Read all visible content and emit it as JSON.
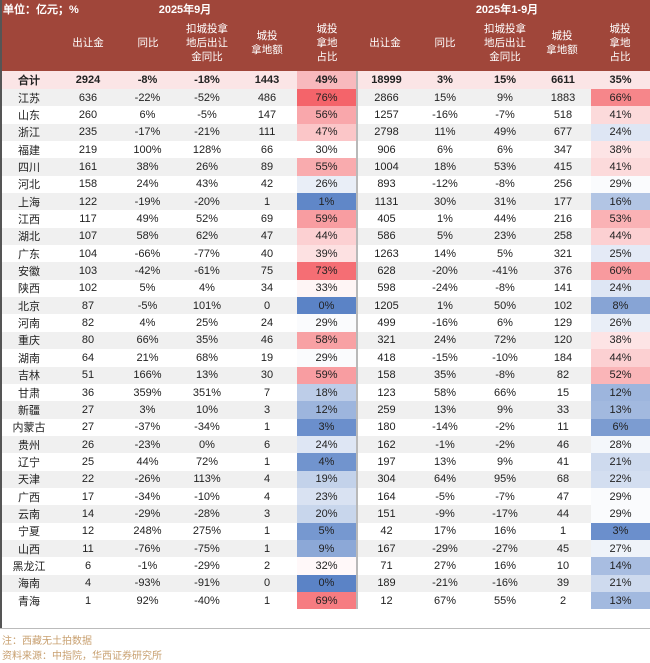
{
  "header": {
    "unit": "单位：亿元；%",
    "period_month": "2025年9月",
    "period_ytd": "2025年1-9月",
    "columns": [
      "出让金",
      "同比",
      "扣城投拿\n地后出让\n金同比",
      "城投\n拿地额",
      "城投\n拿地\n占比"
    ]
  },
  "colors": {
    "header_bg": "#a0463a",
    "high": "#f4646a",
    "low": "#5b83c6",
    "mid": "#ffffff",
    "total_bg": "#fbe5e6",
    "alt_row": "#f0f0f0"
  },
  "rows": [
    {
      "name": "合计",
      "m": [
        "2924",
        "-8%",
        "-18%",
        "1443",
        "49%"
      ],
      "y": [
        "18999",
        "3%",
        "15%",
        "6611",
        "35%"
      ]
    },
    {
      "name": "江苏",
      "m": [
        "636",
        "-22%",
        "-52%",
        "486",
        "76%"
      ],
      "y": [
        "2866",
        "15%",
        "9%",
        "1883",
        "66%"
      ]
    },
    {
      "name": "山东",
      "m": [
        "260",
        "6%",
        "-5%",
        "147",
        "56%"
      ],
      "y": [
        "1257",
        "-16%",
        "-7%",
        "518",
        "41%"
      ]
    },
    {
      "name": "浙江",
      "m": [
        "235",
        "-17%",
        "-21%",
        "111",
        "47%"
      ],
      "y": [
        "2798",
        "11%",
        "49%",
        "677",
        "24%"
      ]
    },
    {
      "name": "福建",
      "m": [
        "219",
        "100%",
        "128%",
        "66",
        "30%"
      ],
      "y": [
        "906",
        "6%",
        "6%",
        "347",
        "38%"
      ]
    },
    {
      "name": "四川",
      "m": [
        "161",
        "38%",
        "26%",
        "89",
        "55%"
      ],
      "y": [
        "1004",
        "18%",
        "53%",
        "415",
        "41%"
      ]
    },
    {
      "name": "河北",
      "m": [
        "158",
        "24%",
        "43%",
        "42",
        "26%"
      ],
      "y": [
        "893",
        "-12%",
        "-8%",
        "256",
        "29%"
      ]
    },
    {
      "name": "上海",
      "m": [
        "122",
        "-19%",
        "-20%",
        "1",
        "1%"
      ],
      "y": [
        "1131",
        "30%",
        "31%",
        "177",
        "16%"
      ]
    },
    {
      "name": "江西",
      "m": [
        "117",
        "49%",
        "52%",
        "69",
        "59%"
      ],
      "y": [
        "405",
        "1%",
        "44%",
        "216",
        "53%"
      ]
    },
    {
      "name": "湖北",
      "m": [
        "107",
        "58%",
        "62%",
        "47",
        "44%"
      ],
      "y": [
        "586",
        "5%",
        "23%",
        "258",
        "44%"
      ]
    },
    {
      "name": "广东",
      "m": [
        "104",
        "-66%",
        "-77%",
        "40",
        "39%"
      ],
      "y": [
        "1263",
        "14%",
        "5%",
        "321",
        "25%"
      ]
    },
    {
      "name": "安徽",
      "m": [
        "103",
        "-42%",
        "-61%",
        "75",
        "73%"
      ],
      "y": [
        "628",
        "-20%",
        "-41%",
        "376",
        "60%"
      ]
    },
    {
      "name": "陕西",
      "m": [
        "102",
        "5%",
        "4%",
        "34",
        "33%"
      ],
      "y": [
        "598",
        "-24%",
        "-8%",
        "141",
        "24%"
      ]
    },
    {
      "name": "北京",
      "m": [
        "87",
        "-5%",
        "101%",
        "0",
        "0%"
      ],
      "y": [
        "1205",
        "1%",
        "50%",
        "102",
        "8%"
      ]
    },
    {
      "name": "河南",
      "m": [
        "82",
        "4%",
        "25%",
        "24",
        "29%"
      ],
      "y": [
        "499",
        "-16%",
        "6%",
        "129",
        "26%"
      ]
    },
    {
      "name": "重庆",
      "m": [
        "80",
        "66%",
        "35%",
        "46",
        "58%"
      ],
      "y": [
        "321",
        "24%",
        "72%",
        "120",
        "38%"
      ]
    },
    {
      "name": "湖南",
      "m": [
        "64",
        "21%",
        "68%",
        "19",
        "29%"
      ],
      "y": [
        "418",
        "-15%",
        "-10%",
        "184",
        "44%"
      ]
    },
    {
      "name": "吉林",
      "m": [
        "51",
        "166%",
        "13%",
        "30",
        "59%"
      ],
      "y": [
        "158",
        "35%",
        "-8%",
        "82",
        "52%"
      ]
    },
    {
      "name": "甘肃",
      "m": [
        "36",
        "359%",
        "351%",
        "7",
        "18%"
      ],
      "y": [
        "123",
        "58%",
        "66%",
        "15",
        "12%"
      ]
    },
    {
      "name": "新疆",
      "m": [
        "27",
        "3%",
        "10%",
        "3",
        "12%"
      ],
      "y": [
        "259",
        "13%",
        "9%",
        "33",
        "13%"
      ]
    },
    {
      "name": "内蒙古",
      "m": [
        "27",
        "-37%",
        "-34%",
        "1",
        "3%"
      ],
      "y": [
        "180",
        "-14%",
        "-2%",
        "11",
        "6%"
      ]
    },
    {
      "name": "贵州",
      "m": [
        "26",
        "-23%",
        "0%",
        "6",
        "24%"
      ],
      "y": [
        "162",
        "-1%",
        "-2%",
        "46",
        "28%"
      ]
    },
    {
      "name": "辽宁",
      "m": [
        "25",
        "44%",
        "72%",
        "1",
        "4%"
      ],
      "y": [
        "197",
        "13%",
        "9%",
        "41",
        "21%"
      ]
    },
    {
      "name": "天津",
      "m": [
        "22",
        "-26%",
        "113%",
        "4",
        "19%"
      ],
      "y": [
        "304",
        "64%",
        "95%",
        "68",
        "22%"
      ]
    },
    {
      "name": "广西",
      "m": [
        "17",
        "-34%",
        "-10%",
        "4",
        "23%"
      ],
      "y": [
        "164",
        "-5%",
        "-7%",
        "47",
        "29%"
      ]
    },
    {
      "name": "云南",
      "m": [
        "14",
        "-29%",
        "-28%",
        "3",
        "20%"
      ],
      "y": [
        "151",
        "-9%",
        "-17%",
        "44",
        "29%"
      ]
    },
    {
      "name": "宁夏",
      "m": [
        "12",
        "248%",
        "275%",
        "1",
        "5%"
      ],
      "y": [
        "42",
        "17%",
        "16%",
        "1",
        "3%"
      ]
    },
    {
      "name": "山西",
      "m": [
        "11",
        "-76%",
        "-75%",
        "1",
        "9%"
      ],
      "y": [
        "167",
        "-29%",
        "-27%",
        "45",
        "27%"
      ]
    },
    {
      "name": "黑龙江",
      "m": [
        "6",
        "-1%",
        "-29%",
        "2",
        "32%"
      ],
      "y": [
        "71",
        "27%",
        "16%",
        "10",
        "14%"
      ]
    },
    {
      "name": "海南",
      "m": [
        "4",
        "-93%",
        "-91%",
        "0",
        "0%"
      ],
      "y": [
        "189",
        "-21%",
        "-16%",
        "39",
        "21%"
      ]
    },
    {
      "name": "青海",
      "m": [
        "1",
        "92%",
        "-40%",
        "1",
        "69%"
      ],
      "y": [
        "12",
        "67%",
        "55%",
        "2",
        "13%"
      ]
    }
  ],
  "footer": {
    "note": "注：西藏无土拍数据",
    "source": "资料来源：中指院，华西证券研究所"
  }
}
